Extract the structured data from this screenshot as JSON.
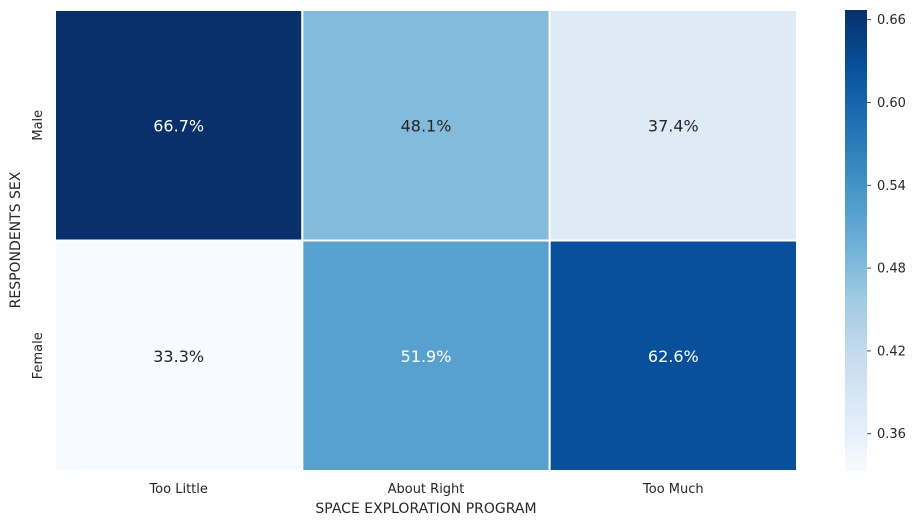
{
  "chart_data": {
    "type": "heatmap",
    "title": "",
    "xlabel": "SPACE EXPLORATION PROGRAM",
    "ylabel": "RESPONDENTS SEX",
    "x_categories": [
      "Too Little",
      "About Right",
      "Too Much"
    ],
    "y_categories": [
      "Male",
      "Female"
    ],
    "values": [
      [
        0.667,
        0.481,
        0.374
      ],
      [
        0.333,
        0.519,
        0.626
      ]
    ],
    "cell_labels": [
      [
        "66.7%",
        "48.1%",
        "37.4%"
      ],
      [
        "33.3%",
        "51.9%",
        "62.6%"
      ]
    ],
    "colorbar": {
      "range": [
        0.333,
        0.667
      ],
      "ticks": [
        0.36,
        0.42,
        0.48,
        0.54,
        0.6,
        0.66
      ],
      "tick_labels": [
        "0.36",
        "0.42",
        "0.48",
        "0.54",
        "0.60",
        "0.66"
      ]
    },
    "colormap": "Blues",
    "grid": false
  }
}
